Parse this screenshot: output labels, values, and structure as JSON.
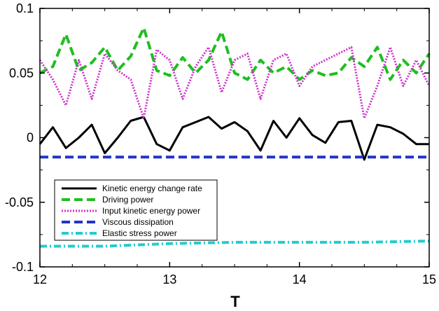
{
  "chart_data": {
    "type": "line",
    "title": "",
    "xlabel": "T",
    "ylabel": "",
    "xlim": [
      12,
      15
    ],
    "ylim": [
      -0.1,
      0.1
    ],
    "x_ticks": [
      "12",
      "13",
      "14",
      "15"
    ],
    "y_ticks": [
      "0.1",
      "0.05",
      "0",
      "-0.05",
      "-0.1"
    ],
    "grid": false,
    "legend_position": "lower-left",
    "series": [
      {
        "name": "Kinetic energy change rate",
        "color": "#000000",
        "dash": "solid",
        "x": [
          12.0,
          12.1,
          12.2,
          12.3,
          12.4,
          12.5,
          12.6,
          12.7,
          12.8,
          12.9,
          13.0,
          13.1,
          13.2,
          13.3,
          13.4,
          13.5,
          13.6,
          13.7,
          13.8,
          13.9,
          14.0,
          14.1,
          14.2,
          14.3,
          14.4,
          14.5,
          14.6,
          14.7,
          14.8,
          14.9,
          15.0
        ],
        "y": [
          -0.005,
          0.008,
          -0.008,
          0.0,
          0.01,
          -0.012,
          0.0,
          0.013,
          0.016,
          -0.005,
          -0.01,
          0.008,
          0.012,
          0.016,
          0.007,
          0.012,
          0.005,
          -0.01,
          0.013,
          0.0,
          0.015,
          0.002,
          -0.004,
          0.012,
          0.013,
          -0.017,
          0.01,
          0.008,
          0.003,
          -0.005,
          -0.005
        ]
      },
      {
        "name": "Driving power",
        "color": "#1fbf1f",
        "dash": "dashed",
        "x": [
          12.0,
          12.1,
          12.2,
          12.3,
          12.4,
          12.5,
          12.6,
          12.7,
          12.8,
          12.9,
          13.0,
          13.1,
          13.2,
          13.3,
          13.4,
          13.5,
          13.6,
          13.7,
          13.8,
          13.9,
          14.0,
          14.1,
          14.2,
          14.3,
          14.4,
          14.5,
          14.6,
          14.7,
          14.8,
          14.9,
          15.0
        ],
        "y": [
          0.05,
          0.055,
          0.08,
          0.052,
          0.058,
          0.07,
          0.052,
          0.063,
          0.085,
          0.052,
          0.048,
          0.062,
          0.05,
          0.06,
          0.082,
          0.05,
          0.045,
          0.06,
          0.05,
          0.055,
          0.045,
          0.052,
          0.048,
          0.05,
          0.062,
          0.055,
          0.07,
          0.045,
          0.06,
          0.05,
          0.065
        ]
      },
      {
        "name": "Input kinetic energy power",
        "color": "#cc33cc",
        "dash": "dotted",
        "x": [
          12.0,
          12.1,
          12.2,
          12.3,
          12.4,
          12.5,
          12.6,
          12.7,
          12.8,
          12.9,
          13.0,
          13.1,
          13.2,
          13.3,
          13.4,
          13.5,
          13.6,
          13.7,
          13.8,
          13.9,
          14.0,
          14.1,
          14.2,
          14.3,
          14.4,
          14.5,
          14.6,
          14.7,
          14.8,
          14.9,
          15.0
        ],
        "y": [
          0.06,
          0.045,
          0.025,
          0.06,
          0.03,
          0.065,
          0.052,
          0.045,
          0.015,
          0.068,
          0.06,
          0.03,
          0.055,
          0.07,
          0.035,
          0.06,
          0.065,
          0.03,
          0.06,
          0.065,
          0.04,
          0.055,
          0.06,
          0.065,
          0.07,
          0.015,
          0.04,
          0.07,
          0.04,
          0.06,
          0.04
        ]
      },
      {
        "name": "Viscous dissipation",
        "color": "#2233cc",
        "dash": "dashed",
        "x": [
          12.0,
          15.0
        ],
        "y": [
          -0.015,
          -0.015
        ]
      },
      {
        "name": "Elastic stress power",
        "color": "#22cccc",
        "dash": "dashdot",
        "x": [
          12.0,
          12.5,
          13.0,
          13.5,
          14.0,
          14.5,
          15.0
        ],
        "y": [
          -0.084,
          -0.084,
          -0.082,
          -0.081,
          -0.081,
          -0.081,
          -0.08
        ]
      }
    ]
  }
}
